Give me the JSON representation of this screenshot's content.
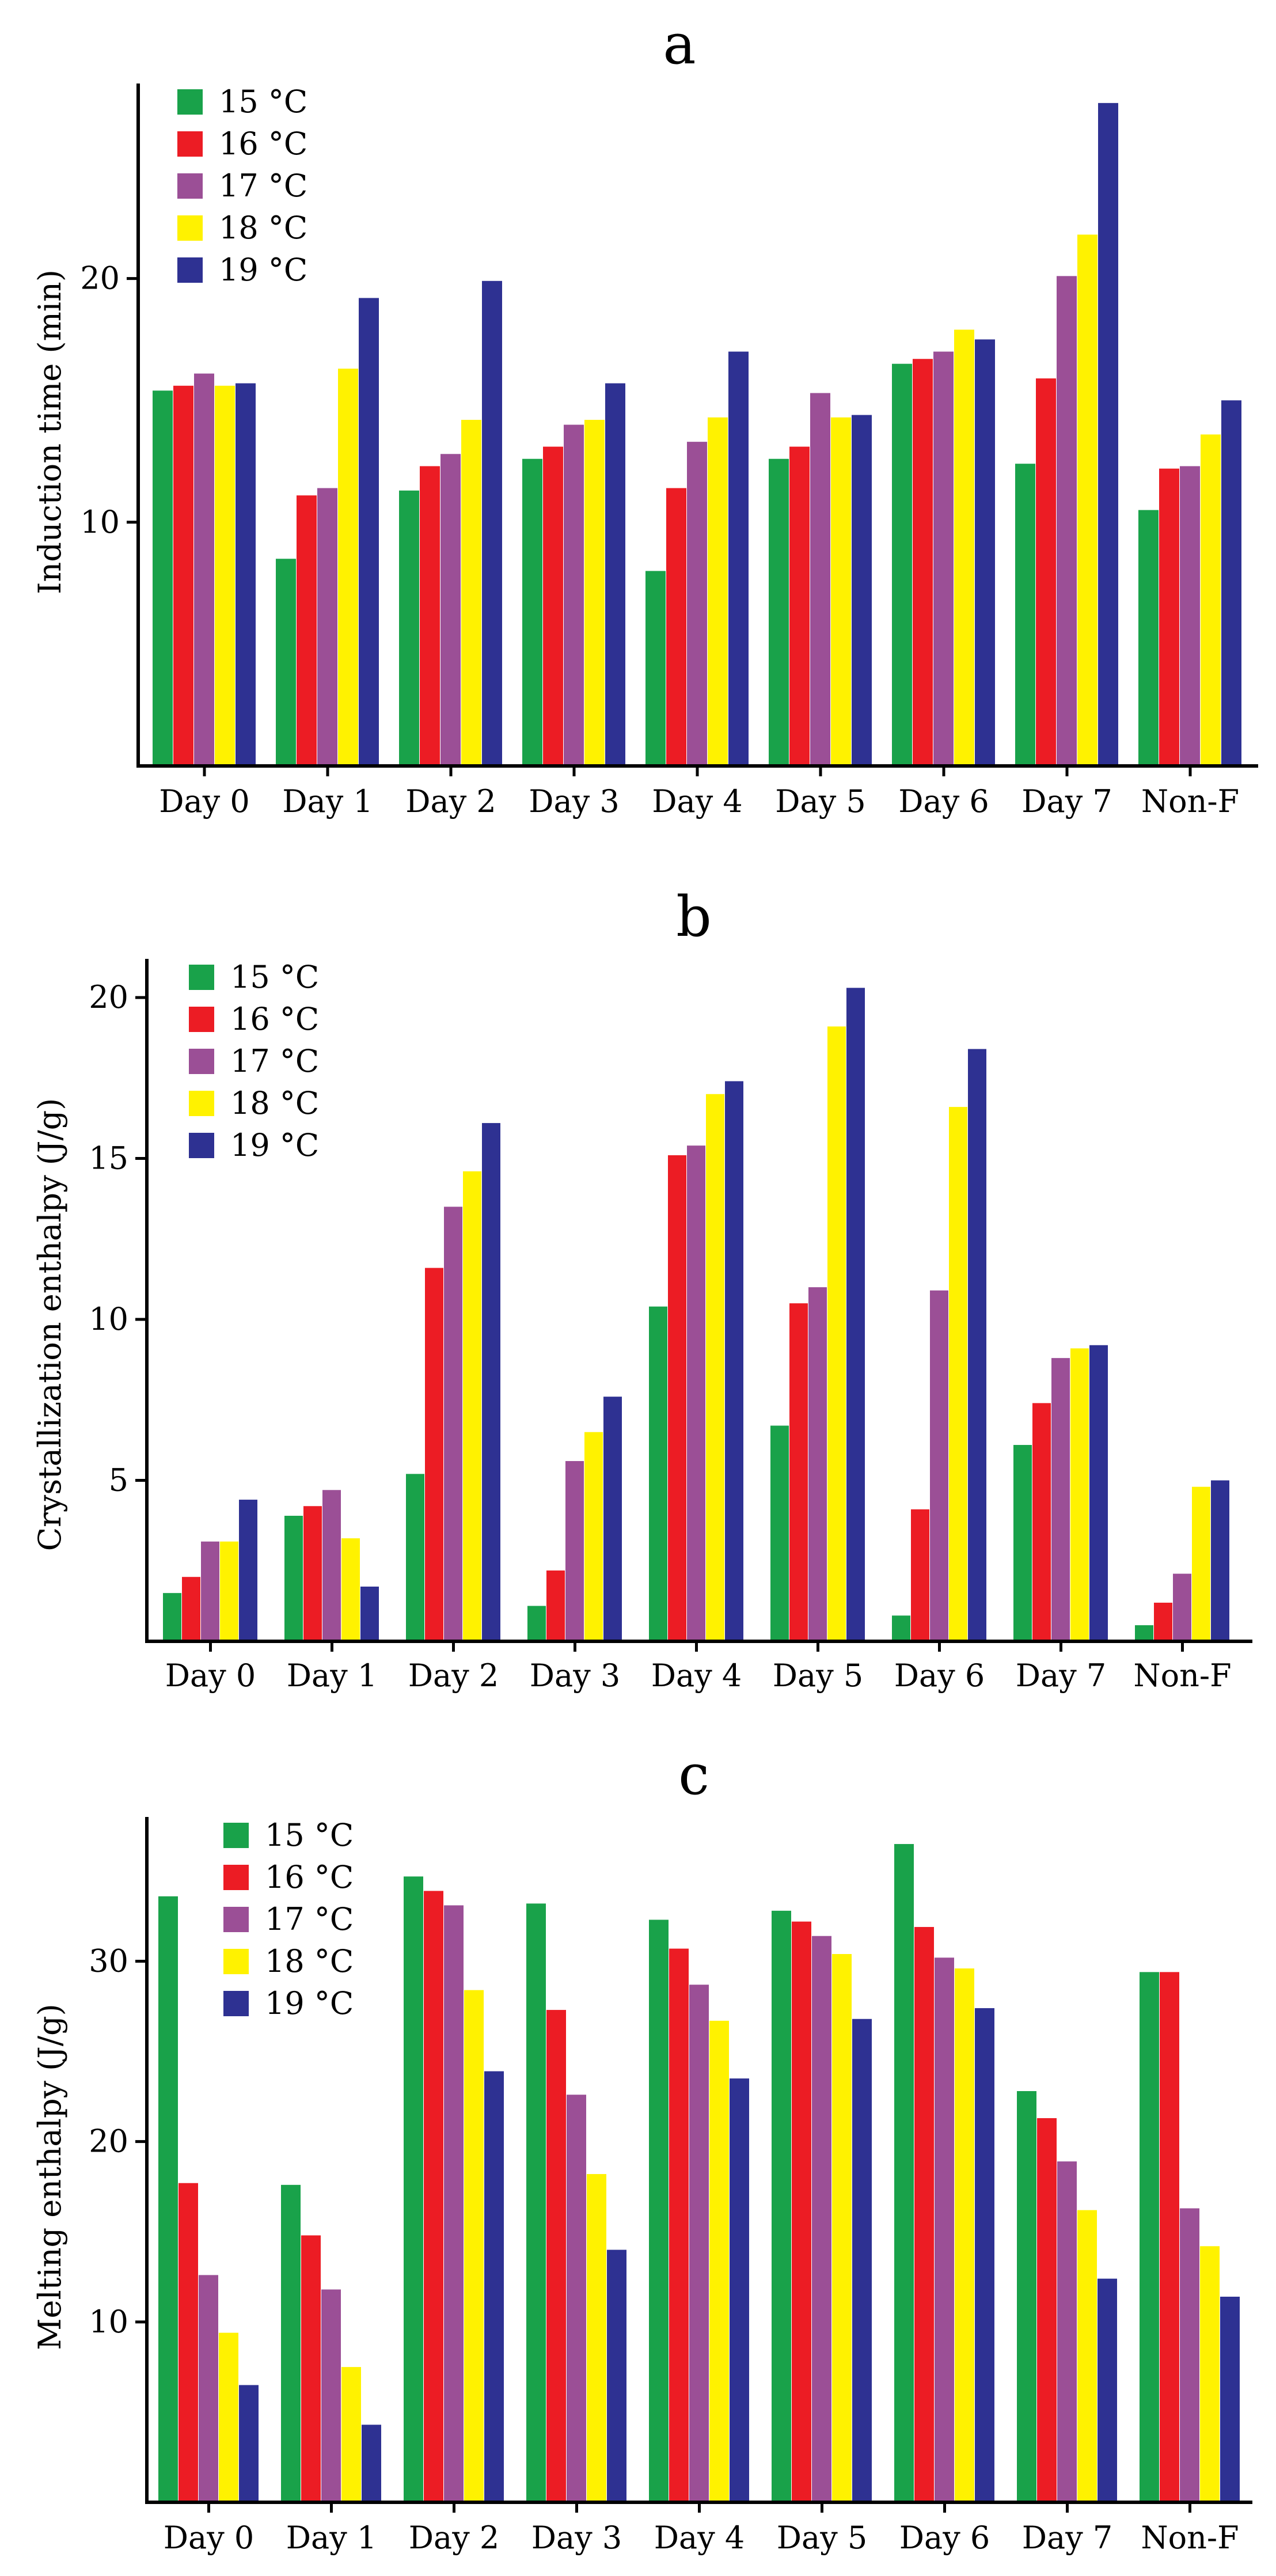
{
  "colors": [
    "#19a24a",
    "#ec1c24",
    "#9b4f96",
    "#fff200",
    "#2e3192"
  ],
  "chart_data": [
    {
      "id": "a",
      "type": "bar",
      "panel_label": "a",
      "title": "",
      "xlabel": "",
      "ylabel": "Induction time (min)",
      "ylim": [
        0,
        28
      ],
      "yticks": [
        10,
        20
      ],
      "grid": false,
      "legend": "top-left",
      "categories": [
        "Day 0",
        "Day 1",
        "Day 2",
        "Day 3",
        "Day 4",
        "Day 5",
        "Day 6",
        "Day 7",
        "Non-F"
      ],
      "series": [
        {
          "name": "15 °C",
          "color": "#19a24a",
          "values": [
            15.4,
            8.5,
            11.3,
            12.6,
            8.0,
            12.6,
            16.5,
            12.4,
            10.5
          ]
        },
        {
          "name": "16 °C",
          "color": "#ec1c24",
          "values": [
            15.6,
            11.1,
            12.3,
            13.1,
            11.4,
            13.1,
            16.7,
            15.9,
            12.2
          ]
        },
        {
          "name": "17 °C",
          "color": "#9b4f96",
          "values": [
            16.1,
            11.4,
            12.8,
            14.0,
            13.3,
            15.3,
            17.0,
            20.1,
            12.3
          ]
        },
        {
          "name": "18 °C",
          "color": "#fff200",
          "values": [
            15.6,
            16.3,
            14.2,
            14.2,
            14.3,
            14.3,
            17.9,
            21.8,
            13.6
          ]
        },
        {
          "name": "19 °C",
          "color": "#2e3192",
          "values": [
            15.7,
            19.2,
            19.9,
            15.7,
            17.0,
            14.4,
            17.5,
            27.2,
            15.0
          ]
        }
      ]
    },
    {
      "id": "b",
      "type": "bar",
      "panel_label": "b",
      "title": "",
      "xlabel": "",
      "ylabel": "Crystallization enthalpy (J/g)",
      "ylim": [
        0,
        21.2
      ],
      "yticks": [
        5,
        10,
        15,
        20
      ],
      "grid": false,
      "legend": "top-left",
      "categories": [
        "Day 0",
        "Day 1",
        "Day 2",
        "Day 3",
        "Day 4",
        "Day 5",
        "Day 6",
        "Day 7",
        "Non-F"
      ],
      "series": [
        {
          "name": "15 °C",
          "color": "#19a24a",
          "values": [
            1.5,
            3.9,
            5.2,
            1.1,
            10.4,
            6.7,
            0.8,
            6.1,
            0.5
          ]
        },
        {
          "name": "16 °C",
          "color": "#ec1c24",
          "values": [
            2.0,
            4.2,
            11.6,
            2.2,
            15.1,
            10.5,
            4.1,
            7.4,
            1.2
          ]
        },
        {
          "name": "17 °C",
          "color": "#9b4f96",
          "values": [
            3.1,
            4.7,
            13.5,
            5.6,
            15.4,
            11.0,
            10.9,
            8.8,
            2.1
          ]
        },
        {
          "name": "18 °C",
          "color": "#fff200",
          "values": [
            3.1,
            3.2,
            14.6,
            6.5,
            17.0,
            19.1,
            16.6,
            9.1,
            4.8
          ]
        },
        {
          "name": "19 °C",
          "color": "#2e3192",
          "values": [
            4.4,
            1.7,
            16.1,
            7.6,
            17.4,
            20.3,
            18.4,
            9.2,
            5.0
          ]
        }
      ]
    },
    {
      "id": "c",
      "type": "bar",
      "panel_label": "c",
      "title": "",
      "xlabel": "",
      "ylabel": "Melting enthalpy (J/g)",
      "ylim": [
        0,
        38
      ],
      "yticks": [
        10,
        20,
        30
      ],
      "grid": false,
      "legend": "top-left",
      "categories": [
        "Day 0",
        "Day 1",
        "Day 2",
        "Day 3",
        "Day 4",
        "Day 5",
        "Day 6",
        "Day 7",
        "Non-F"
      ],
      "series": [
        {
          "name": "15 °C",
          "color": "#19a24a",
          "values": [
            33.6,
            17.6,
            34.7,
            33.2,
            32.3,
            32.8,
            36.5,
            22.8,
            29.4
          ]
        },
        {
          "name": "16 °C",
          "color": "#ec1c24",
          "values": [
            17.7,
            14.8,
            33.9,
            27.3,
            30.7,
            32.2,
            31.9,
            21.3,
            29.4
          ]
        },
        {
          "name": "17 °C",
          "color": "#9b4f96",
          "values": [
            12.6,
            11.8,
            33.1,
            22.6,
            28.7,
            31.4,
            30.2,
            18.9,
            16.3
          ]
        },
        {
          "name": "18 °C",
          "color": "#fff200",
          "values": [
            9.4,
            7.5,
            28.4,
            18.2,
            26.7,
            30.4,
            29.6,
            16.2,
            14.2
          ]
        },
        {
          "name": "19 °C",
          "color": "#2e3192",
          "values": [
            6.5,
            4.3,
            23.9,
            14.0,
            23.5,
            26.8,
            27.4,
            12.4,
            11.4
          ]
        }
      ]
    }
  ]
}
